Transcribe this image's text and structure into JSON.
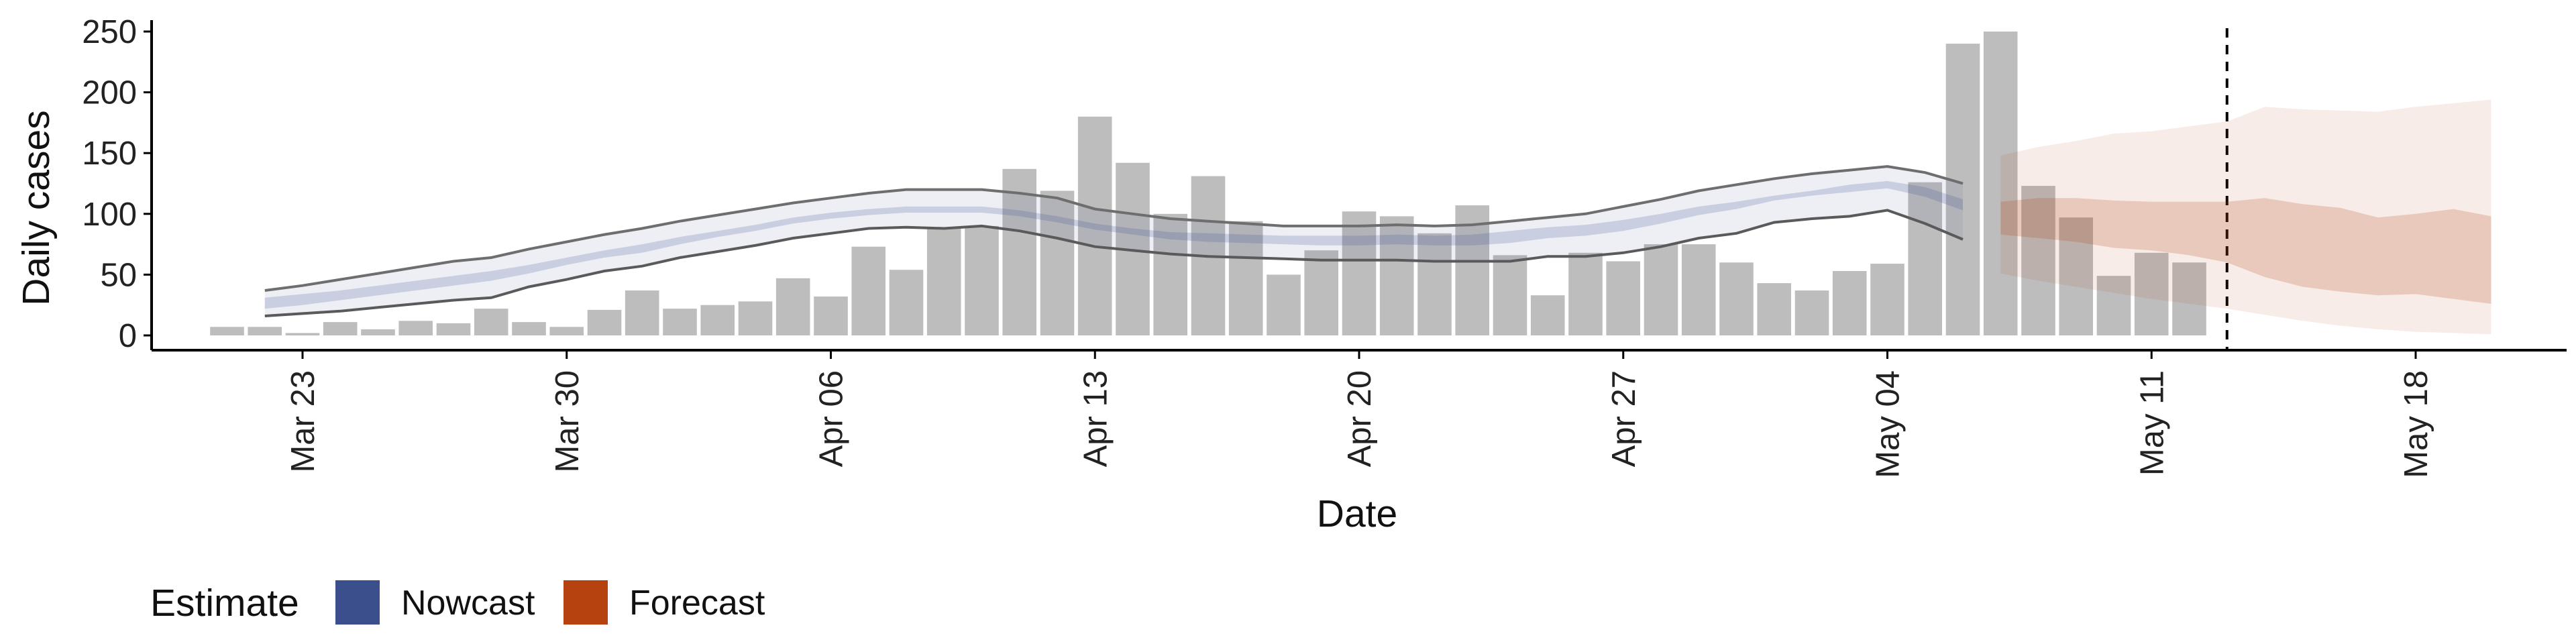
{
  "colors": {
    "bars": "#bdbdbd",
    "nowcast": "#3b4f8c",
    "forecast": "#b5420f",
    "axis": "#000000"
  },
  "legend": {
    "title": "Estimate",
    "items": [
      "Nowcast",
      "Forecast"
    ]
  },
  "chart_data": {
    "type": "bar",
    "xlabel": "Date",
    "ylabel": "Daily cases",
    "x_ticks": [
      "Mar 23",
      "Mar 30",
      "Apr 06",
      "Apr 13",
      "Apr 20",
      "Apr 27",
      "May 04",
      "May 11",
      "May 18"
    ],
    "y_ticks": [
      0,
      50,
      100,
      150,
      200,
      250
    ],
    "ylim": [
      0,
      260
    ],
    "xlim": [
      "2020-03-19",
      "2020-05-22"
    ],
    "grid": false,
    "legend_position": "bottom-left",
    "reference_line": "2020-05-13",
    "observed": {
      "dates": [
        "2020-03-21",
        "2020-03-22",
        "2020-03-23",
        "2020-03-24",
        "2020-03-25",
        "2020-03-26",
        "2020-03-27",
        "2020-03-28",
        "2020-03-29",
        "2020-03-30",
        "2020-03-31",
        "2020-04-01",
        "2020-04-02",
        "2020-04-03",
        "2020-04-04",
        "2020-04-05",
        "2020-04-06",
        "2020-04-07",
        "2020-04-08",
        "2020-04-09",
        "2020-04-10",
        "2020-04-11",
        "2020-04-12",
        "2020-04-13",
        "2020-04-14",
        "2020-04-15",
        "2020-04-16",
        "2020-04-17",
        "2020-04-18",
        "2020-04-19",
        "2020-04-20",
        "2020-04-21",
        "2020-04-22",
        "2020-04-23",
        "2020-04-24",
        "2020-04-25",
        "2020-04-26",
        "2020-04-27",
        "2020-04-28",
        "2020-04-29",
        "2020-04-30",
        "2020-05-01",
        "2020-05-02",
        "2020-05-03",
        "2020-05-04",
        "2020-05-05",
        "2020-05-06",
        "2020-05-07",
        "2020-05-08",
        "2020-05-09",
        "2020-05-10",
        "2020-05-11",
        "2020-05-12",
        "2020-05-13",
        "2020-05-14"
      ],
      "values": [
        7,
        7,
        2,
        11,
        5,
        12,
        10,
        22,
        11,
        7,
        21,
        37,
        22,
        25,
        28,
        47,
        32,
        73,
        54,
        88,
        90,
        137,
        119,
        180,
        142,
        100,
        131,
        94,
        50,
        70,
        102,
        98,
        84,
        107,
        66,
        33,
        68,
        61,
        75,
        75,
        60,
        43,
        37,
        53,
        59,
        126,
        240,
        250,
        123,
        97,
        49,
        68,
        60,
        null,
        null
      ]
    },
    "nowcast": {
      "dates": [
        "2020-03-22",
        "2020-03-23",
        "2020-03-24",
        "2020-03-25",
        "2020-03-26",
        "2020-03-27",
        "2020-03-28",
        "2020-03-29",
        "2020-03-30",
        "2020-03-31",
        "2020-04-01",
        "2020-04-02",
        "2020-04-03",
        "2020-04-04",
        "2020-04-05",
        "2020-04-06",
        "2020-04-07",
        "2020-04-08",
        "2020-04-09",
        "2020-04-10",
        "2020-04-11",
        "2020-04-12",
        "2020-04-13",
        "2020-04-14",
        "2020-04-15",
        "2020-04-16",
        "2020-04-17",
        "2020-04-18",
        "2020-04-19",
        "2020-04-20",
        "2020-04-21",
        "2020-04-22",
        "2020-04-23",
        "2020-04-24",
        "2020-04-25",
        "2020-04-26",
        "2020-04-27",
        "2020-04-28",
        "2020-04-29",
        "2020-04-30",
        "2020-05-01",
        "2020-05-02",
        "2020-05-03",
        "2020-05-04",
        "2020-05-05",
        "2020-05-06"
      ],
      "lower_90": [
        16,
        18,
        20,
        23,
        26,
        29,
        31,
        40,
        46,
        53,
        57,
        64,
        69,
        74,
        80,
        84,
        88,
        89,
        88,
        90,
        86,
        80,
        73,
        70,
        67,
        65,
        64,
        63,
        62,
        62,
        62,
        61,
        61,
        61,
        65,
        65,
        68,
        73,
        80,
        84,
        93,
        96,
        98,
        103,
        92,
        79
      ],
      "upper_90": [
        37,
        41,
        46,
        51,
        56,
        61,
        64,
        71,
        77,
        83,
        88,
        94,
        99,
        104,
        109,
        113,
        117,
        120,
        120,
        120,
        117,
        113,
        104,
        100,
        96,
        94,
        92,
        90,
        90,
        90,
        91,
        90,
        91,
        94,
        97,
        100,
        106,
        112,
        119,
        124,
        129,
        133,
        136,
        139,
        134,
        125
      ],
      "lower_50": [
        22,
        25,
        29,
        33,
        37,
        41,
        45,
        51,
        58,
        64,
        68,
        75,
        81,
        86,
        92,
        96,
        99,
        101,
        101,
        101,
        98,
        93,
        87,
        83,
        79,
        77,
        76,
        75,
        74,
        74,
        75,
        74,
        74,
        76,
        80,
        82,
        86,
        92,
        99,
        104,
        111,
        115,
        118,
        121,
        114,
        103
      ],
      "upper_50": [
        31,
        34,
        37,
        41,
        45,
        49,
        53,
        58,
        64,
        70,
        75,
        81,
        86,
        91,
        97,
        101,
        104,
        106,
        106,
        106,
        103,
        98,
        92,
        88,
        85,
        84,
        83,
        82,
        82,
        82,
        83,
        82,
        83,
        86,
        89,
        91,
        95,
        100,
        106,
        110,
        115,
        119,
        124,
        127,
        122,
        112
      ]
    },
    "forecast": {
      "dates": [
        "2020-05-07",
        "2020-05-08",
        "2020-05-09",
        "2020-05-10",
        "2020-05-11",
        "2020-05-12",
        "2020-05-13",
        "2020-05-14",
        "2020-05-15",
        "2020-05-16",
        "2020-05-17",
        "2020-05-18",
        "2020-05-19",
        "2020-05-20"
      ],
      "lower_90": [
        51,
        45,
        40,
        35,
        30,
        26,
        22,
        17,
        12,
        8,
        5,
        3,
        2,
        1
      ],
      "upper_90": [
        148,
        155,
        160,
        166,
        168,
        172,
        176,
        188,
        186,
        185,
        184,
        188,
        191,
        194
      ],
      "lower_50": [
        83,
        80,
        77,
        72,
        70,
        66,
        60,
        48,
        40,
        36,
        33,
        34,
        30,
        26
      ],
      "upper_50": [
        110,
        113,
        113,
        111,
        110,
        110,
        110,
        113,
        108,
        105,
        97,
        100,
        104,
        98
      ]
    }
  }
}
